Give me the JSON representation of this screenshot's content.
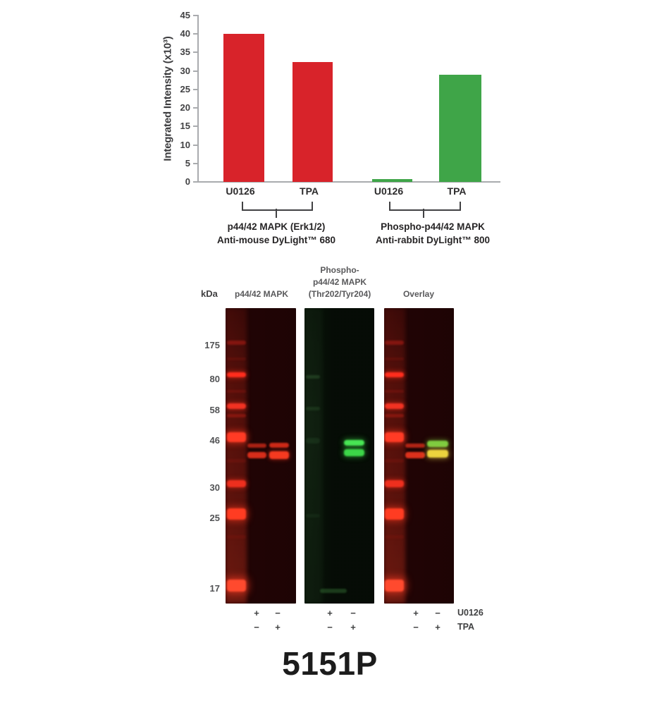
{
  "chart_data": {
    "type": "bar",
    "title": "",
    "ylabel": "Integrated Intensity (x10³)",
    "xlabel": "",
    "ylim": [
      0,
      45
    ],
    "yticks": [
      0,
      5,
      10,
      15,
      20,
      25,
      30,
      35,
      40,
      45
    ],
    "categories": [
      "U0126",
      "TPA",
      "U0126",
      "TPA"
    ],
    "values": [
      40,
      32.5,
      0.8,
      29
    ],
    "colors": [
      "#d8232a",
      "#d8232a",
      "#3fa548",
      "#3fa548"
    ],
    "legend": "none",
    "grid": false,
    "groups": [
      {
        "label_line1": "p44/42 MAPK (Erk1/2)",
        "label_line2": "Anti-mouse DyLight™ 680"
      },
      {
        "label_line1": "Phospho-p44/42 MAPK",
        "label_line2": "Anti-rabbit DyLight™ 800"
      }
    ]
  },
  "blots": {
    "kda_label": "kDa",
    "mw_markers": [
      "175",
      "80",
      "58",
      "46",
      "30",
      "25",
      "17"
    ],
    "panels": [
      {
        "title_lines": [
          "p44/42 MAPK"
        ]
      },
      {
        "title_lines": [
          "Phospho-",
          "p44/42 MAPK",
          "(Thr202/Tyr204)"
        ]
      },
      {
        "title_lines": [
          "Overlay"
        ]
      }
    ],
    "treatment_rows": [
      {
        "label": "U0126",
        "signs": [
          "+",
          "−",
          "+",
          "−",
          "+",
          "−"
        ]
      },
      {
        "label": "TPA",
        "signs": [
          "−",
          "+",
          "−",
          "+",
          "−",
          "+"
        ]
      }
    ]
  },
  "footer": {
    "product_code": "5151P"
  }
}
